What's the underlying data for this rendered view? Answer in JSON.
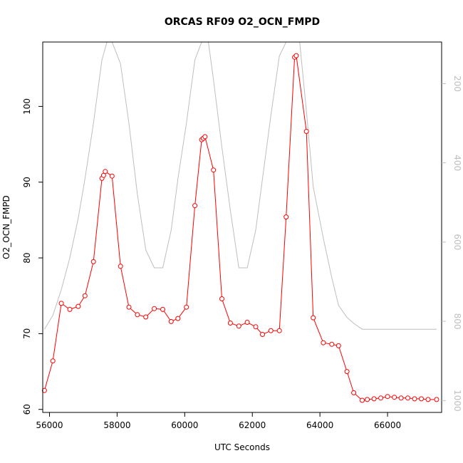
{
  "chart_data": {
    "type": "line",
    "title": "ORCAS RF09 O2_OCN_FMPD",
    "xlabel": "UTC Seconds",
    "ylabel": "O2_OCN_FMPD",
    "xlim": [
      55800,
      67600
    ],
    "ylim": [
      59.6,
      108.5
    ],
    "x_ticks": [
      "56000",
      "58000",
      "60000",
      "62000",
      "64000",
      "66000"
    ],
    "y_ticks": [
      "60",
      "70",
      "80",
      "90",
      "100"
    ],
    "y2_ticks": [
      "200",
      "400",
      "600",
      "800",
      "1000"
    ],
    "y2lim": [
      1030,
      95
    ],
    "grid": false,
    "legend": "none",
    "series": [
      {
        "color": "#ff0000",
        "marker": "open-circle",
        "x": [
          55850,
          56100,
          56350,
          56600,
          56850,
          57050,
          57300,
          57550,
          57600,
          57650,
          57850,
          58100,
          58350,
          58600,
          58850,
          59100,
          59350,
          59600,
          59800,
          60050,
          60300,
          60500,
          60550,
          60600,
          60850,
          61100,
          61350,
          61600,
          61850,
          62100,
          62300,
          62550,
          62800,
          63000,
          63250,
          63300,
          63600,
          63800,
          64100,
          64350,
          64550,
          64800,
          65000,
          65250,
          65400,
          65600,
          65800,
          66000,
          66200,
          66400,
          66600,
          66800,
          67000,
          67200,
          67450
        ],
        "y": [
          62.5,
          66.4,
          74.0,
          73.2,
          73.6,
          75.0,
          79.5,
          90.5,
          90.9,
          91.4,
          90.8,
          78.9,
          73.5,
          72.5,
          72.2,
          73.3,
          73.2,
          71.6,
          72.0,
          73.5,
          86.9,
          95.6,
          95.8,
          96.0,
          91.6,
          74.6,
          71.4,
          71.0,
          71.5,
          70.9,
          69.9,
          70.4,
          70.4,
          85.4,
          106.5,
          106.7,
          96.7,
          72.1,
          68.8,
          68.6,
          68.4,
          65.0,
          62.2,
          61.2,
          61.3,
          61.4,
          61.5,
          61.7,
          61.6,
          61.5,
          61.5,
          61.4,
          61.4,
          61.3,
          61.3
        ]
      },
      {
        "color": "#bebebe",
        "axis": "right",
        "x": [
          55850,
          56100,
          56350,
          56600,
          56850,
          57050,
          57300,
          57550,
          57700,
          57850,
          58100,
          58350,
          58600,
          58850,
          59100,
          59350,
          59600,
          59800,
          60050,
          60300,
          60500,
          60700,
          60850,
          61100,
          61350,
          61600,
          61850,
          62100,
          62300,
          62550,
          62800,
          63000,
          63250,
          63400,
          63600,
          63800,
          64100,
          64350,
          64550,
          64800,
          65000,
          65250,
          65400,
          67450
        ],
        "y": [
          820,
          785,
          720,
          640,
          540,
          440,
          300,
          140,
          75,
          75,
          150,
          300,
          480,
          620,
          665,
          665,
          570,
          440,
          300,
          140,
          60,
          60,
          190,
          360,
          520,
          665,
          665,
          570,
          440,
          280,
          130,
          40,
          40,
          70,
          270,
          460,
          590,
          690,
          760,
          790,
          805,
          820,
          820,
          820
        ]
      }
    ]
  }
}
